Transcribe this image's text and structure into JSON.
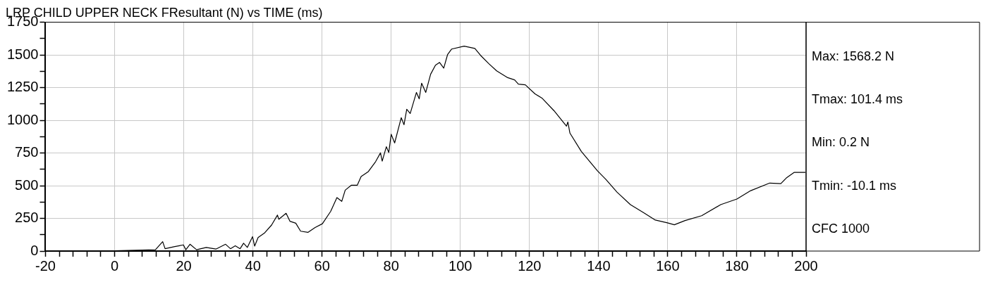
{
  "chart_data": {
    "type": "line",
    "title": "LRP CHILD UPPER NECK FResultant (N) vs TIME (ms)",
    "annotations": [
      "Max: 1568.2 N",
      "Tmax: 101.4 ms",
      "Min: 0.2 N",
      "Tmin: -10.1 ms",
      "CFC 1000"
    ],
    "x": [
      0,
      11.8,
      13.9,
      14.6,
      17.4,
      19.9,
      20.6,
      21.8,
      23.7,
      26.5,
      29.3,
      32.1,
      33.5,
      34.9,
      36.3,
      37.3,
      38.4,
      39.9,
      40.5,
      41.5,
      43.3,
      45.4,
      47.1,
      47.5,
      49.6,
      50.7,
      52.4,
      53.8,
      55.9,
      58,
      60.1,
      62.5,
      64.3,
      65.7,
      66.7,
      68.5,
      70.2,
      71.3,
      73.4,
      75.5,
      76.9,
      77.4,
      78.6,
      79.3,
      80,
      81,
      82.9,
      83.7,
      84.5,
      85.5,
      87.3,
      88.1,
      88.8,
      90,
      91.4,
      92.8,
      94,
      95.2,
      96.3,
      97.5,
      101.1,
      104.2,
      105.8,
      108.2,
      110.5,
      113.7,
      115.7,
      116.8,
      118.8,
      121.6,
      123.6,
      127.1,
      130.7,
      131.1,
      131.7,
      135,
      139.7,
      142.1,
      145.3,
      149.2,
      153.2,
      156.4,
      159.9,
      161.9,
      165,
      169.8,
      175.3,
      180,
      184,
      189.5,
      192.7,
      194.3,
      196.6,
      199.8
    ],
    "series": [
      {
        "color": "#000000",
        "values": [
          2,
          10,
          72,
          18,
          34,
          47,
          10,
          52,
          10,
          28,
          15,
          52,
          18,
          40,
          18,
          60,
          28,
          110,
          38,
          104,
          137,
          199,
          275,
          243,
          289,
          228,
          213,
          152,
          143,
          180,
          209,
          304,
          409,
          380,
          466,
          504,
          504,
          570,
          608,
          684,
          751,
          688,
          798,
          754,
          893,
          827,
          1020,
          966,
          1084,
          1052,
          1213,
          1164,
          1284,
          1213,
          1352,
          1421,
          1442,
          1399,
          1502,
          1545,
          1567,
          1550,
          1498,
          1434,
          1378,
          1326,
          1309,
          1277,
          1271,
          1202,
          1170,
          1073,
          955,
          987,
          902,
          762,
          612,
          548,
          451,
          355,
          291,
          237,
          216,
          201,
          233,
          270,
          355,
          398,
          462,
          520,
          516,
          559,
          602,
          602
        ]
      }
    ],
    "xlim": [
      -20,
      200
    ],
    "xticks": [
      -20,
      {
        "value": -16,
        "label": null
      },
      {
        "value": -12,
        "label": null
      },
      {
        "value": -8,
        "label": null
      },
      {
        "value": -4,
        "label": null
      },
      0,
      {
        "value": 4,
        "label": null
      },
      {
        "value": 8,
        "label": null
      },
      {
        "value": 12,
        "label": null
      },
      {
        "value": 16,
        "label": null
      },
      20,
      {
        "value": 24,
        "label": null
      },
      {
        "value": 28,
        "label": null
      },
      {
        "value": 32,
        "label": null
      },
      {
        "value": 36,
        "label": null
      },
      40,
      {
        "value": 44,
        "label": null
      },
      {
        "value": 48,
        "label": null
      },
      {
        "value": 52,
        "label": null
      },
      {
        "value": 56,
        "label": null
      },
      60,
      {
        "value": 64,
        "label": null
      },
      {
        "value": 68,
        "label": null
      },
      {
        "value": 72,
        "label": null
      },
      {
        "value": 76,
        "label": null
      },
      80,
      {
        "value": 84,
        "label": null
      },
      {
        "value": 88,
        "label": null
      },
      {
        "value": 92,
        "label": null
      },
      {
        "value": 96,
        "label": null
      },
      100,
      {
        "value": 104,
        "label": null
      },
      {
        "value": 108,
        "label": null
      },
      {
        "value": 112,
        "label": null
      },
      {
        "value": 116,
        "label": null
      },
      120,
      {
        "value": 124,
        "label": null
      },
      {
        "value": 128,
        "label": null
      },
      {
        "value": 132,
        "label": null
      },
      {
        "value": 136,
        "label": null
      },
      140,
      {
        "value": 144,
        "label": null
      },
      {
        "value": 148,
        "label": null
      },
      {
        "value": 152,
        "label": null
      },
      {
        "value": 156,
        "label": null
      },
      160,
      {
        "value": 164,
        "label": null
      },
      {
        "value": 168,
        "label": null
      },
      {
        "value": 172,
        "label": null
      },
      {
        "value": 176,
        "label": null
      },
      180,
      {
        "value": 184,
        "label": null
      },
      {
        "value": 188,
        "label": null
      },
      {
        "value": 192,
        "label": null
      },
      {
        "value": 196,
        "label": null
      },
      200
    ],
    "ylim": [
      0,
      1750
    ],
    "yticks": [
      0,
      {
        "value": 125,
        "label": null
      },
      250,
      {
        "value": 375,
        "label": null
      },
      500,
      {
        "value": 625,
        "label": null
      },
      750,
      {
        "value": 875,
        "label": null
      },
      1000,
      {
        "value": 1125,
        "label": null
      },
      1250,
      {
        "value": 1375,
        "label": null
      },
      1500,
      {
        "value": 1625,
        "label": null
      },
      1750
    ],
    "grid": true,
    "marker": "none",
    "line_style": "solid"
  }
}
